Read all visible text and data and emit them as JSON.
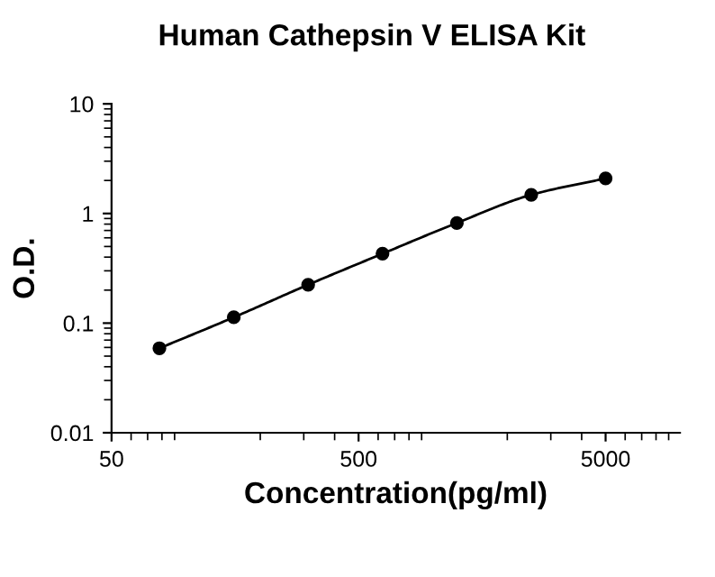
{
  "chart_data": {
    "type": "line",
    "title": "Human Cathepsin V ELISA Kit",
    "xlabel": "Concentration(pg/ml)",
    "ylabel": "O.D.",
    "x": [
      78.125,
      156.25,
      312.5,
      625,
      1250,
      2500,
      5000
    ],
    "series": [
      {
        "color": "#000000",
        "values": [
          0.059,
          0.113,
          0.224,
          0.43,
          0.82,
          1.48,
          2.09
        ]
      }
    ],
    "log": "xy",
    "xlim": [
      50,
      10000
    ],
    "ylim": [
      0.01,
      10
    ],
    "xticks": [
      50,
      500,
      5000
    ],
    "yticks": [
      0.01,
      0.1,
      1,
      10
    ],
    "marker": "circle",
    "line_style": "solid",
    "grid": false
  }
}
